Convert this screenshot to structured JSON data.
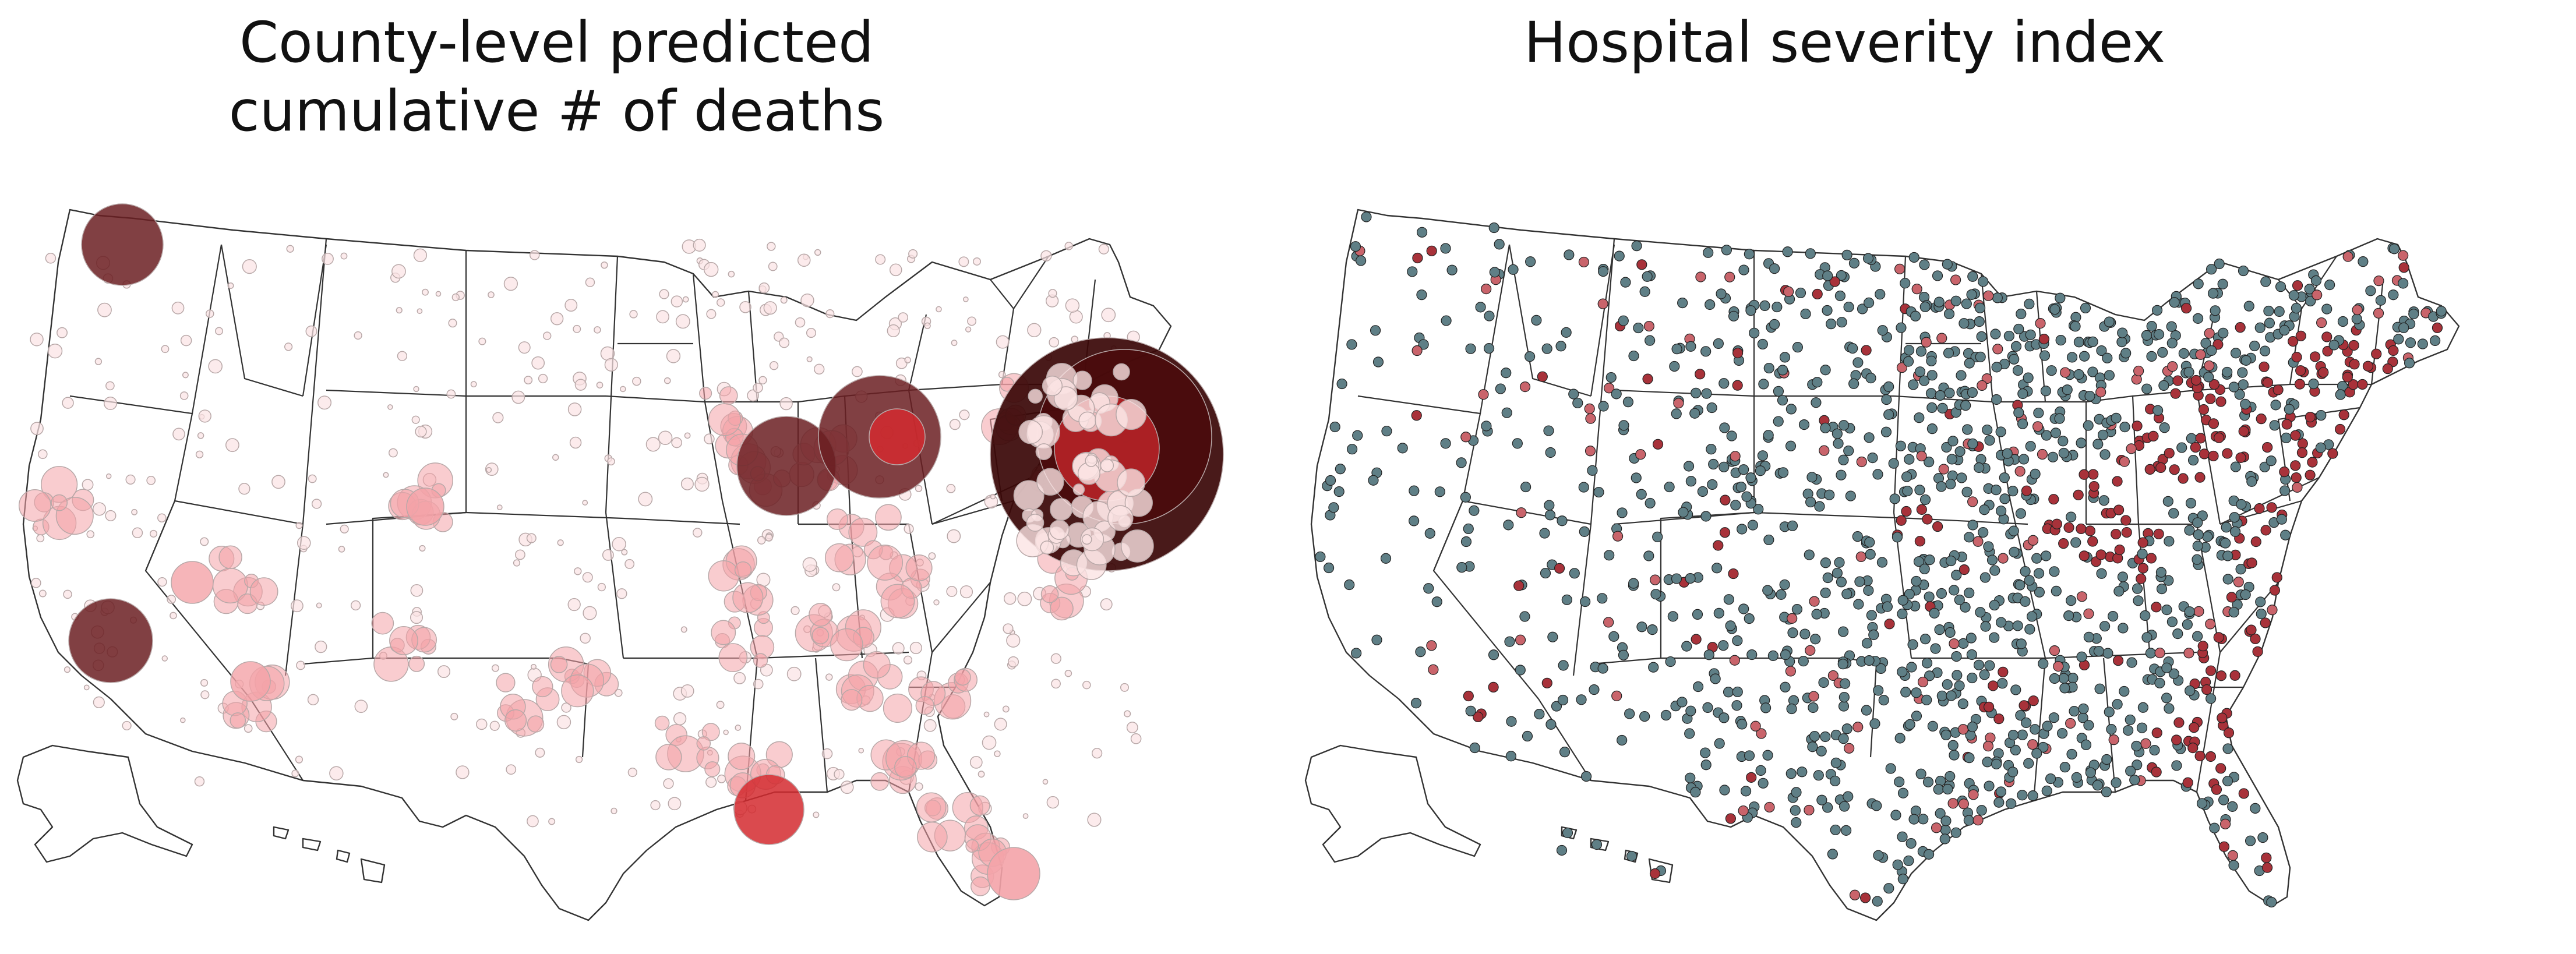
{
  "panels": {
    "left": {
      "title_line1": "County-level predicted",
      "title_line2": "cumulative # of deaths"
    },
    "right": {
      "title": "Hospital severity index"
    }
  },
  "colors": {
    "state_stroke": "#333333",
    "state_fill": "#ffffff",
    "bubble_darkest": "#3a0606",
    "bubble_dark": "#6b1f22",
    "bubble_mid": "#d42a2f",
    "bubble_light": "#f4a3a8",
    "bubble_palest": "#fbe3e4",
    "hospital_high": "#a8323a",
    "hospital_mid": "#c9646b",
    "hospital_low": "#5f7f86",
    "county_high": "#f6b6b8",
    "county_mid": "#fde0e0"
  }
}
